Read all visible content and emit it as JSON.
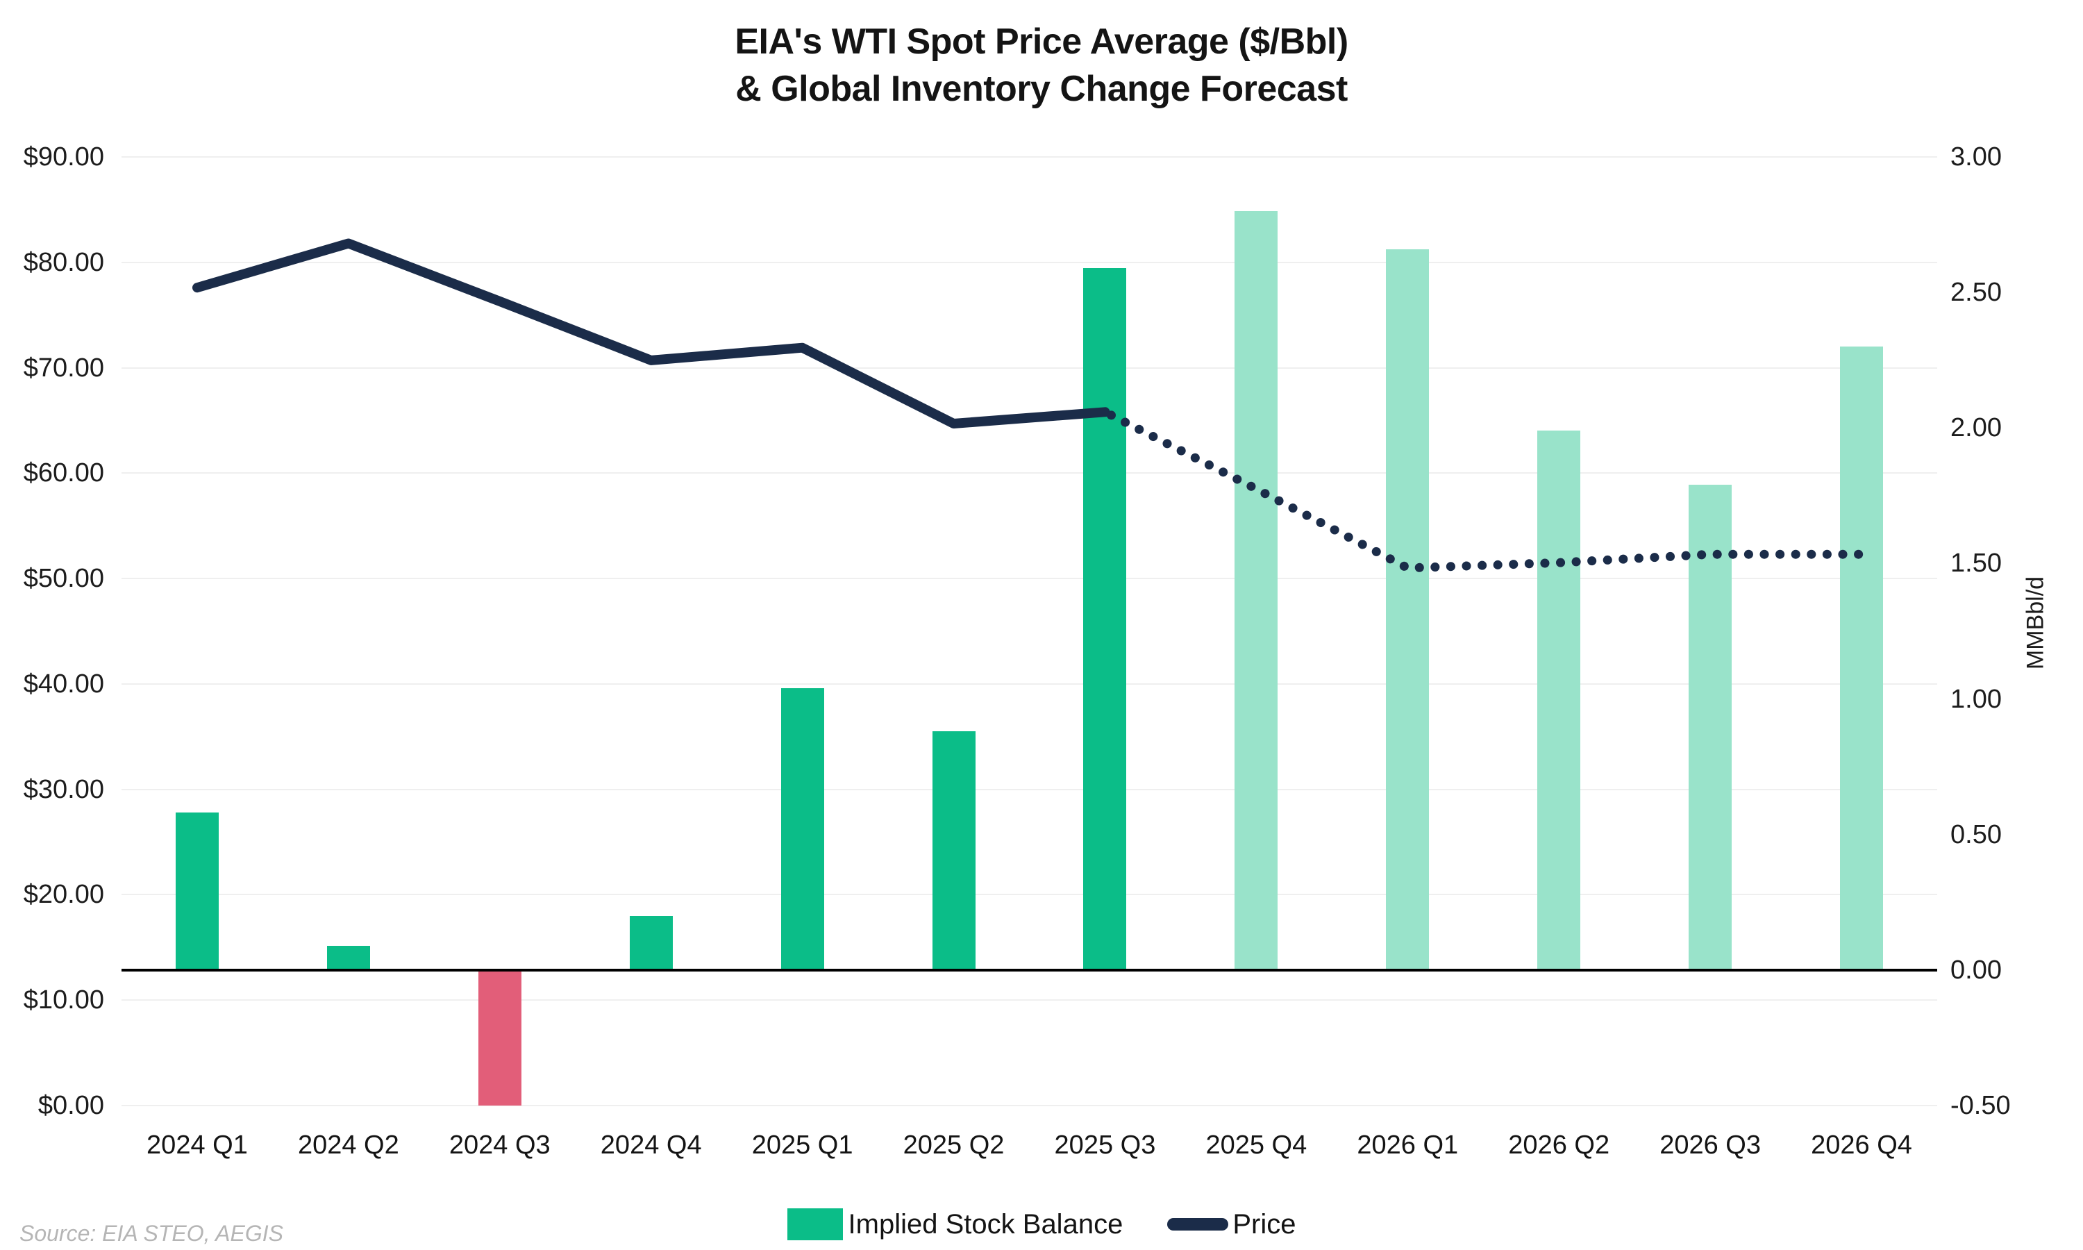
{
  "title": {
    "line1": "EIA's WTI Spot Price Average ($/Bbl)",
    "line2": "& Global Inventory Change Forecast"
  },
  "source": "Source: EIA STEO, AEGIS",
  "colors": {
    "bar_solid": "#0bbd88",
    "bar_forecast": "#99e3ca",
    "bar_negative": "#e25e79",
    "line": "#1b2c49",
    "grid": "#efefef",
    "zero_line": "#000000",
    "text": "#141414",
    "source_text": "#b5b5b5"
  },
  "chart_data": {
    "type": "bar",
    "subtype": "bar+line combo, right-axis bars with left-axis price line",
    "title": "EIA's WTI Spot Price Average ($/Bbl) & Global Inventory Change Forecast",
    "categories": [
      "2024 Q1",
      "2024 Q2",
      "2024 Q3",
      "2024 Q4",
      "2025 Q1",
      "2025 Q2",
      "2025 Q3",
      "2025 Q4",
      "2026 Q1",
      "2026 Q2",
      "2026 Q3",
      "2026 Q4"
    ],
    "series": [
      {
        "name": "Implied Stock Balance",
        "type": "bar",
        "axis": "right",
        "values": [
          0.58,
          0.09,
          -0.5,
          0.2,
          1.04,
          0.88,
          2.59,
          2.8,
          2.66,
          1.99,
          1.79,
          2.3
        ],
        "forecast_from_index": 7,
        "negative_indices": [
          2
        ]
      },
      {
        "name": "Price",
        "type": "line",
        "axis": "left",
        "values": [
          77.6,
          81.8,
          76.3,
          70.7,
          71.9,
          64.7,
          65.8,
          58.5,
          51.0,
          51.5,
          52.3,
          52.3
        ],
        "dotted_from_index": 6
      }
    ],
    "axes": {
      "left": {
        "ticks": [
          "$90.00",
          "$80.00",
          "$70.00",
          "$60.00",
          "$50.00",
          "$40.00",
          "$30.00",
          "$20.00",
          "$10.00",
          "$0.00"
        ],
        "min": 0,
        "max": 90
      },
      "right": {
        "ticks": [
          "3.00",
          "2.50",
          "2.00",
          "1.50",
          "1.00",
          "0.50",
          "0.00",
          "-0.50"
        ],
        "min": -0.5,
        "max": 3.0,
        "unit": "MMBbl/d"
      }
    },
    "grid": true,
    "legend_position": "bottom"
  }
}
